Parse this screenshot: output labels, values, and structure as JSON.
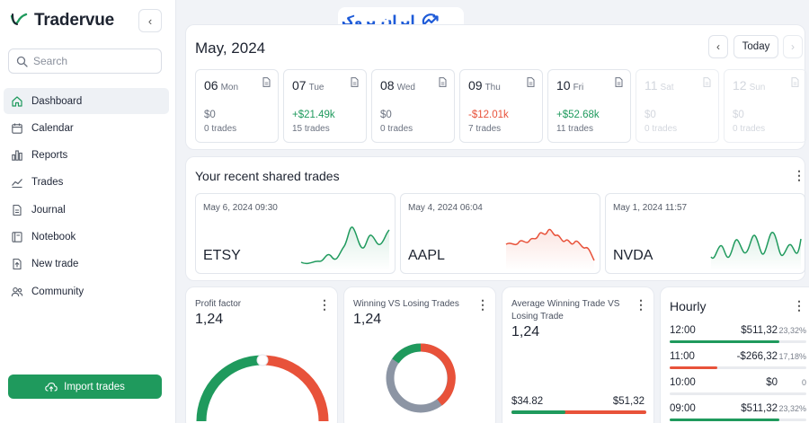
{
  "app": {
    "name": "Tradervue"
  },
  "sidebar": {
    "search_placeholder": "Search",
    "items": [
      {
        "label": "Dashboard",
        "icon": "home-icon",
        "active": true
      },
      {
        "label": "Calendar",
        "icon": "calendar-icon"
      },
      {
        "label": "Reports",
        "icon": "bar-chart-icon"
      },
      {
        "label": "Trades",
        "icon": "trend-line-icon"
      },
      {
        "label": "Journal",
        "icon": "document-icon"
      },
      {
        "label": "Notebook",
        "icon": "notebook-icon"
      },
      {
        "label": "New trade",
        "icon": "file-upload-icon"
      },
      {
        "label": "Community",
        "icon": "users-icon"
      }
    ],
    "import_label": "Import trades"
  },
  "watermark": {
    "text": "ایران بروکر",
    "color": "#1e5bd8"
  },
  "calendar": {
    "month": "May, 2024",
    "today_label": "Today",
    "days": [
      {
        "num": "06",
        "name": "Mon",
        "pnl": "$0",
        "trades": "0 trades",
        "status": "neutral"
      },
      {
        "num": "07",
        "name": "Tue",
        "pnl": "+$21.49k",
        "trades": "15 trades",
        "status": "positive"
      },
      {
        "num": "08",
        "name": "Wed",
        "pnl": "$0",
        "trades": "0 trades",
        "status": "neutral"
      },
      {
        "num": "09",
        "name": "Thu",
        "pnl": "-$12.01k",
        "trades": "7 trades",
        "status": "negative"
      },
      {
        "num": "10",
        "name": "Fri",
        "pnl": "+$52.68k",
        "trades": "11 trades",
        "status": "positive"
      },
      {
        "num": "11",
        "name": "Sat",
        "pnl": "$0",
        "trades": "0 trades",
        "status": "dim"
      },
      {
        "num": "12",
        "name": "Sun",
        "pnl": "$0",
        "trades": "0 trades",
        "status": "dim"
      }
    ]
  },
  "shared": {
    "title": "Your recent shared trades",
    "trades": [
      {
        "date": "May 6, 2024 09:30",
        "symbol": "ETSY",
        "color": "#1f9a5d"
      },
      {
        "date": "May 4, 2024 06:04",
        "symbol": "AAPL",
        "color": "#e8523a"
      },
      {
        "date": "May 1, 2024 11:57",
        "symbol": "NVDA",
        "color": "#1f9a5d"
      }
    ]
  },
  "stats": {
    "profit_factor": {
      "label": "Profit factor",
      "value": "1,24"
    },
    "win_loss": {
      "label": "Winning VS Losing Trades",
      "value": "1,24"
    },
    "avg_win": {
      "label_line1": "Average Winning Trade VS",
      "label_line2": "Losing Trade",
      "value": "1,24",
      "left": "$34.82",
      "right": "$51,32",
      "win_fraction": 0.4
    }
  },
  "hourly": {
    "title": "Hourly",
    "rows": [
      {
        "time": "12:00",
        "value": "$511,32",
        "pct": "23,32%",
        "fraction": 0.8,
        "color": "#1f9a5d"
      },
      {
        "time": "11:00",
        "value": "-$266,32",
        "pct": "17,18%",
        "fraction": 0.35,
        "color": "#e8523a"
      },
      {
        "time": "10:00",
        "value": "$0",
        "pct": "0",
        "fraction": 0,
        "color": "#1f9a5d"
      },
      {
        "time": "09:00",
        "value": "$511,32",
        "pct": "23,32%",
        "fraction": 0.8,
        "color": "#1f9a5d"
      }
    ]
  },
  "colors": {
    "green": "#1f9a5d",
    "red": "#e8523a",
    "gray": "#8c95a4"
  }
}
